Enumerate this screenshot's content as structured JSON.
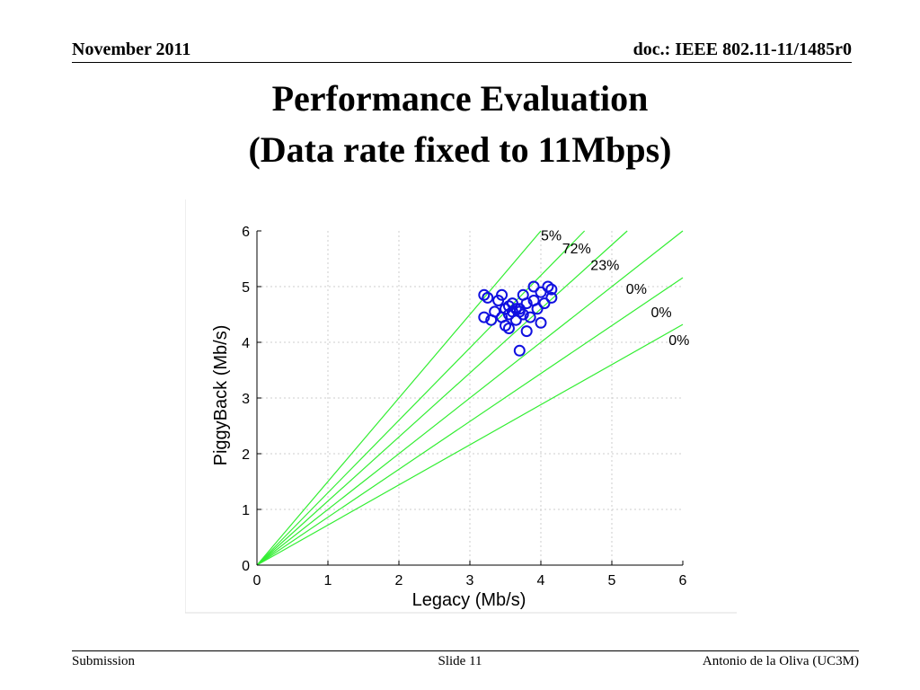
{
  "header": {
    "date": "November 2011",
    "doc_id": "doc.: IEEE 802.11-11/1485r0"
  },
  "title": {
    "line1": "Performance Evaluation",
    "line2": "(Data rate fixed to 11Mbps)"
  },
  "footer": {
    "left": "Submission",
    "center": "Slide 11",
    "right": "Antonio de la Oliva (UC3M)"
  },
  "colors": {
    "points": "#1010e0",
    "lines": "#33ee33",
    "grid": "#cccccc"
  },
  "chart_data": {
    "type": "scatter",
    "xlabel": "Legacy (Mb/s)",
    "ylabel": "PiggyBack (Mb/s)",
    "xlim": [
      0,
      6
    ],
    "ylim": [
      0,
      6
    ],
    "xticks": [
      0,
      1,
      2,
      3,
      4,
      5,
      6
    ],
    "yticks": [
      0,
      1,
      2,
      3,
      4,
      5,
      6
    ],
    "grid": true,
    "reference_lines": [
      {
        "slope": 1.5,
        "label": "5%"
      },
      {
        "slope": 1.3,
        "label": "72%"
      },
      {
        "slope": 1.15,
        "label": "23%"
      },
      {
        "slope": 1.0,
        "label": "0%"
      },
      {
        "slope": 0.86,
        "label": "0%"
      },
      {
        "slope": 0.72,
        "label": "0%"
      }
    ],
    "points": [
      [
        3.2,
        4.85
      ],
      [
        3.25,
        4.8
      ],
      [
        3.2,
        4.45
      ],
      [
        3.3,
        4.4
      ],
      [
        3.35,
        4.55
      ],
      [
        3.4,
        4.75
      ],
      [
        3.45,
        4.85
      ],
      [
        3.45,
        4.45
      ],
      [
        3.5,
        4.6
      ],
      [
        3.5,
        4.3
      ],
      [
        3.55,
        4.5
      ],
      [
        3.55,
        4.65
      ],
      [
        3.6,
        4.55
      ],
      [
        3.6,
        4.7
      ],
      [
        3.65,
        4.4
      ],
      [
        3.7,
        4.55
      ],
      [
        3.7,
        4.6
      ],
      [
        3.75,
        4.85
      ],
      [
        3.75,
        4.5
      ],
      [
        3.8,
        4.7
      ],
      [
        3.8,
        4.2
      ],
      [
        3.85,
        4.45
      ],
      [
        3.9,
        4.75
      ],
      [
        3.9,
        5.0
      ],
      [
        3.95,
        4.6
      ],
      [
        4.0,
        4.35
      ],
      [
        4.0,
        4.9
      ],
      [
        4.05,
        4.7
      ],
      [
        4.1,
        5.0
      ],
      [
        4.15,
        4.8
      ],
      [
        4.15,
        4.95
      ],
      [
        3.55,
        4.25
      ],
      [
        3.65,
        4.6
      ],
      [
        3.7,
        3.85
      ]
    ]
  }
}
